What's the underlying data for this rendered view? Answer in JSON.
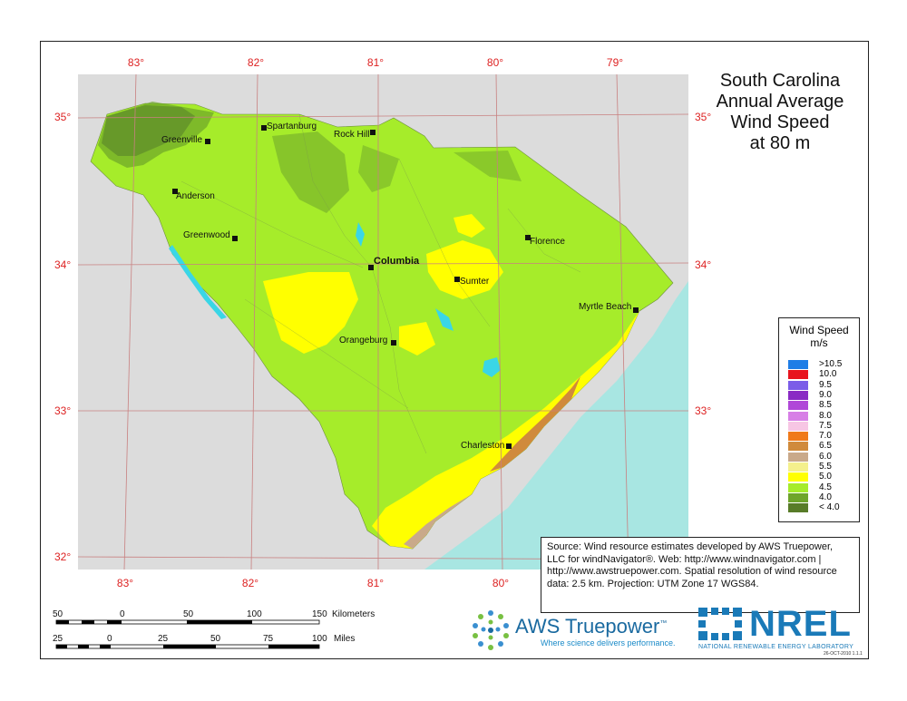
{
  "title": [
    "South Carolina",
    "Annual Average",
    "Wind Speed",
    "at 80 m"
  ],
  "lon_top": [
    "83°",
    "82°",
    "81°",
    "80°",
    "79°"
  ],
  "lon_bottom": [
    "83°",
    "82°",
    "81°",
    "80°"
  ],
  "lat_left": [
    "35°",
    "34°",
    "33°",
    "32°"
  ],
  "lat_right": [
    "35°",
    "34°",
    "33°"
  ],
  "cities": {
    "greenville": "Greenville",
    "spartanburg": "Spartanburg",
    "rock_hill": "Rock Hill",
    "anderson": "Anderson",
    "greenwood": "Greenwood",
    "columbia": "Columbia",
    "florence": "Florence",
    "sumter": "Sumter",
    "myrtle_beach": "Myrtle Beach",
    "orangeburg": "Orangeburg",
    "charleston": "Charleston"
  },
  "legend": {
    "title": [
      "Wind Speed",
      "m/s"
    ],
    "classes": [
      {
        "label": ">10.5",
        "color": "#1e7de6"
      },
      {
        "label": "10.0",
        "color": "#e8141e"
      },
      {
        "label": "9.5",
        "color": "#7b5ce8"
      },
      {
        "label": "9.0",
        "color": "#8a2bc4"
      },
      {
        "label": "8.5",
        "color": "#b048d8"
      },
      {
        "label": "8.0",
        "color": "#d77fe6"
      },
      {
        "label": "7.5",
        "color": "#f7c6e4"
      },
      {
        "label": "7.0",
        "color": "#f07a1a"
      },
      {
        "label": "6.5",
        "color": "#d08a3c"
      },
      {
        "label": "6.0",
        "color": "#c9a98a"
      },
      {
        "label": "5.5",
        "color": "#f4f08c"
      },
      {
        "label": "5.0",
        "color": "#ffff00"
      },
      {
        "label": "4.5",
        "color": "#a6ec2a"
      },
      {
        "label": "4.0",
        "color": "#6ea52a"
      },
      {
        "label": "< 4.0",
        "color": "#587c28"
      }
    ]
  },
  "source": "Source: Wind resource estimates developed by AWS Truepower, LLC for windNavigator®. Web: http://www.windnavigator.com | http://www.awstruepower.com. Spatial resolution of wind resource data: 2.5 km. Projection: UTM Zone 17 WGS84.",
  "scale": {
    "km_labels": [
      "50",
      "0",
      "50",
      "100",
      "150"
    ],
    "km_unit": "Kilometers",
    "mi_labels": [
      "25",
      "0",
      "25",
      "50",
      "75",
      "100"
    ],
    "mi_unit": "Miles"
  },
  "logos": {
    "aws_name_a": "AWS",
    "aws_name_b": "Truepower",
    "aws_tm": "™",
    "aws_tag": "Where science delivers performance.",
    "nrel_word": "NREL",
    "nrel_sub": "NATIONAL RENEWABLE ENERGY LABORATORY"
  },
  "date": "26-OCT-2010 1.1.1",
  "colors": {
    "land": "#a6ec2a",
    "ocean": "#a8e6e2",
    "outside": "#dcdcdc",
    "grid": "#c88080",
    "water": "#3ad6e6"
  }
}
